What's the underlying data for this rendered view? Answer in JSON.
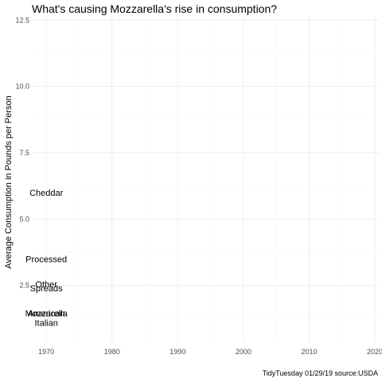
{
  "chart_data": {
    "type": "scatter",
    "title": "What's causing Mozzarella's rise in consumption?",
    "subtitle": "",
    "xlabel": "",
    "ylabel": "Average Consumption in Pounds per Person",
    "caption": "TidyTuesday 01/29/19 source:USDA",
    "xlim": [
      1967.8,
      2020.6
    ],
    "ylim": [
      0.33,
      12.6
    ],
    "x_ticks": [
      1970,
      1980,
      1990,
      2000,
      2010,
      2020
    ],
    "y_ticks": [
      2.5,
      5.0,
      7.5,
      10.0,
      12.5
    ],
    "x_tick_labels": [
      "1970",
      "1980",
      "1990",
      "2000",
      "2010",
      "2020"
    ],
    "y_tick_labels": [
      "2.5",
      "5.0",
      "7.5",
      "10.0",
      "12.5"
    ],
    "grid": true,
    "legend": "none",
    "series": [
      {
        "label": "Cheddar",
        "x": 1970,
        "y": 6.0
      },
      {
        "label": "Processed",
        "x": 1970,
        "y": 3.5
      },
      {
        "label": "Other",
        "x": 1970,
        "y": 2.55
      },
      {
        "label": "Spreads",
        "x": 1970,
        "y": 2.4
      },
      {
        "label": "Mozzarella",
        "x": 1970,
        "y": 1.45
      },
      {
        "label": "American",
        "x": 1970,
        "y": 1.45
      },
      {
        "label": "Italian",
        "x": 1970,
        "y": 1.1
      }
    ]
  }
}
